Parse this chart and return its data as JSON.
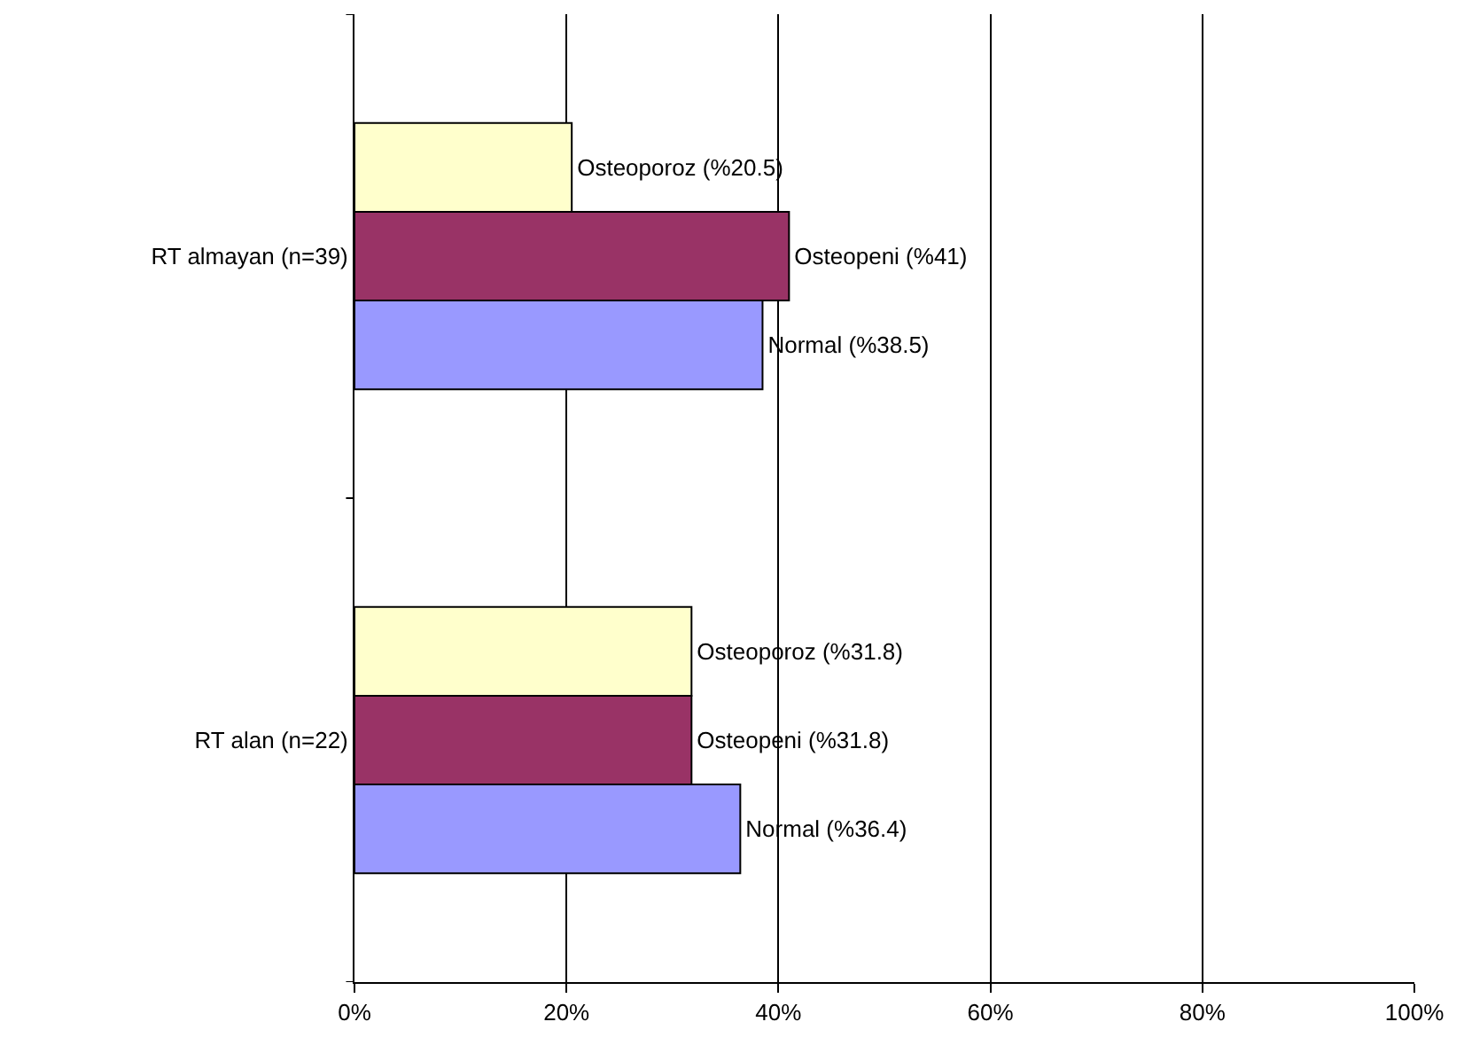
{
  "chart_data": {
    "type": "bar",
    "orientation": "horizontal",
    "categories": [
      "RT almayan (n=39)",
      "RT alan (n=22)"
    ],
    "series": [
      {
        "color": "#ffffcc",
        "values": [
          20.5,
          31.8
        ],
        "value_labels": [
          "Osteoporoz (%20.5)",
          "Osteoporoz (%31.8)"
        ]
      },
      {
        "color": "#993366",
        "values": [
          41,
          31.8
        ],
        "value_labels": [
          "Osteopeni (%41)",
          "Osteopeni (%31.8)"
        ]
      },
      {
        "color": "#9999ff",
        "values": [
          38.5,
          36.4
        ],
        "value_labels": [
          "Normal (%38.5)",
          "Normal (%36.4)"
        ]
      }
    ],
    "xlim": [
      0,
      100
    ],
    "xticks": [
      {
        "value": 0,
        "label": "0%"
      },
      {
        "value": 20,
        "label": "20%"
      },
      {
        "value": 40,
        "label": "40%"
      },
      {
        "value": 60,
        "label": "60%"
      },
      {
        "value": 80,
        "label": "80%"
      },
      {
        "value": 100,
        "label": "100%"
      }
    ],
    "grid": "x",
    "legend": false
  }
}
